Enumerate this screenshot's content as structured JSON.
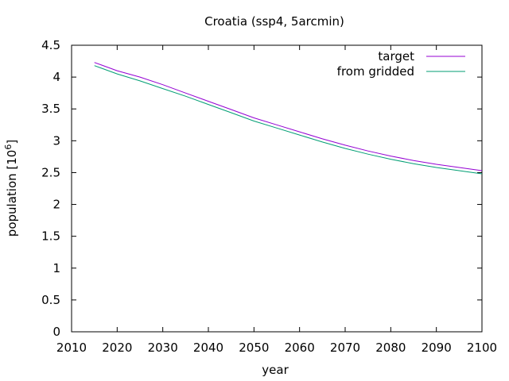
{
  "chart_data": {
    "type": "line",
    "title": "Croatia (ssp4, 5arcmin)",
    "xlabel": "year",
    "ylabel_main": "population [10",
    "ylabel_exp": "6",
    "ylabel_close": "]",
    "xlim": [
      2010,
      2100
    ],
    "ylim": [
      0,
      4.5
    ],
    "xticks": [
      2010,
      2020,
      2030,
      2040,
      2050,
      2060,
      2070,
      2080,
      2090,
      2100
    ],
    "yticks": [
      0,
      0.5,
      1,
      1.5,
      2,
      2.5,
      3,
      3.5,
      4,
      4.5
    ],
    "xtick_labels": [
      "2010",
      "2020",
      "2030",
      "2040",
      "2050",
      "2060",
      "2070",
      "2080",
      "2090",
      "2100"
    ],
    "ytick_labels": [
      "0",
      "0.5",
      "1",
      "1.5",
      "2",
      "2.5",
      "3",
      "3.5",
      "4",
      "4.5"
    ],
    "legend_position": "top-right",
    "grid": false,
    "x": [
      2015,
      2020,
      2025,
      2030,
      2035,
      2040,
      2045,
      2050,
      2055,
      2060,
      2065,
      2070,
      2075,
      2080,
      2085,
      2090,
      2095,
      2100
    ],
    "series": [
      {
        "name": "target",
        "color": "#9400d3",
        "values": [
          4.23,
          4.1,
          4.0,
          3.88,
          3.75,
          3.62,
          3.49,
          3.36,
          3.25,
          3.14,
          3.03,
          2.93,
          2.84,
          2.76,
          2.69,
          2.63,
          2.58,
          2.53
        ]
      },
      {
        "name": "from gridded",
        "color": "#009e73",
        "values": [
          4.18,
          4.05,
          3.94,
          3.82,
          3.7,
          3.57,
          3.44,
          3.31,
          3.2,
          3.09,
          2.98,
          2.88,
          2.79,
          2.71,
          2.64,
          2.58,
          2.53,
          2.48
        ]
      }
    ]
  }
}
